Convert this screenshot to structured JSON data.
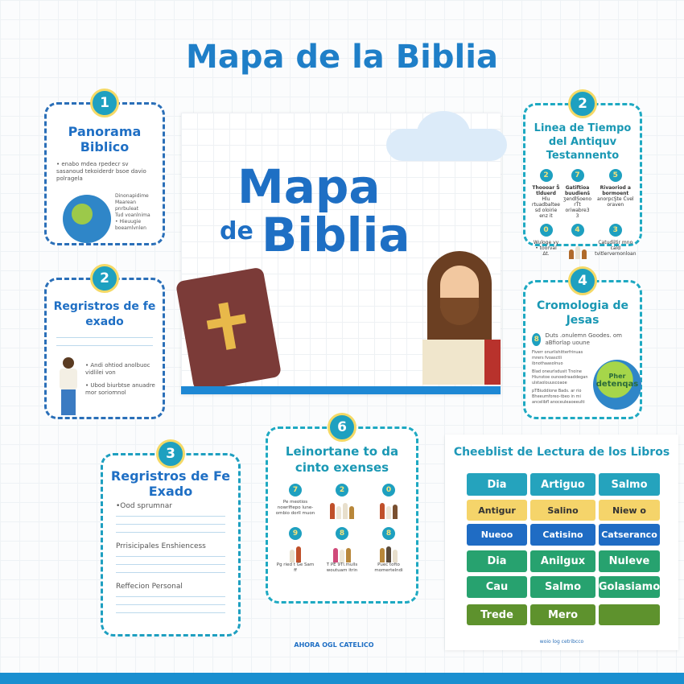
{
  "title": "Mapa de la Biblia",
  "poster": {
    "line1": "Mapa",
    "line2a": "de",
    "line2b": "Biblia"
  },
  "cards": {
    "panorama": {
      "badge": "1",
      "title": "Panorama Biblico",
      "text": "• enabo mdea rpedecr sv sasanoud tekoiderdr bsoe davio polragela",
      "side": [
        "Dinonapidime",
        "Maarean",
        "pnrbuleat",
        "Tud voanlnima",
        "• Hieuugie",
        "boeamlvnlen"
      ]
    },
    "timeline": {
      "badge": "2",
      "title": "Linea de Tiempo del Antiquv Testannento",
      "items": [
        {
          "n": "2",
          "label": "Thoooar Ŝ tlduerd",
          "sub": "Hlu rtuadbaltee sd oloirie enz it"
        },
        {
          "n": "7",
          "label": "Gatiftioa buudienŝ",
          "sub": "ʒendlSoeno rŤt oriwabre3 3"
        },
        {
          "n": "5",
          "label": "Rivaoriod a bormoent",
          "sub": "anorpcŞte Ćvel oraven"
        },
        {
          "n": "0",
          "label": "",
          "sub": "Wuloge vy • toorval Δt."
        },
        {
          "n": "4",
          "label": "",
          "sub": ""
        },
        {
          "n": "3",
          "label": "",
          "sub": "Catudiitir mno cald tvitlervernonloan"
        }
      ]
    },
    "registros_left": {
      "badge": "2",
      "title": "Regristros de fe exado",
      "bullets": [
        "• Andi ohtiod anolbuoc vidlilei von",
        "• Ubod biurbtse anuadre mor soriomnol"
      ]
    },
    "cronologia": {
      "badge": "4",
      "title": "Cromologia de Jesas",
      "n": "8",
      "lead": "Duts .onulemn Goodes. om aBfiorlap uoune",
      "paras": [
        "Fiverr onurlishitterfrinuas mrers fvoasctli ibnothaasolnuo",
        "Blad oneurlsdusit Tnoine Hiunstoe ounoedraaddegan ulstaolouuscoaoe",
        "pTBiuddiorw Bads. ar rio Bheeumforeo-tbeo in mi",
        "ancelibfl anoceuleaoeeulti"
      ],
      "globe_text": [
        "Pher",
        "detenqas"
      ]
    },
    "registros_3": {
      "badge": "3",
      "title": "Regristros de Fe Exado",
      "s1": "•Ood sprumnar",
      "s2": "Prrisicipales Enshiencess",
      "s3": "Reffecion Personal"
    },
    "leinortane": {
      "badge": "6",
      "title": "Leinortane to da cinto exenses",
      "items": [
        {
          "n": "7",
          "text": "Pe meotios nowrlfiepo lune-ombio dorll muon"
        },
        {
          "n": "2",
          "text": ""
        },
        {
          "n": "0",
          "text": ""
        },
        {
          "n": "9",
          "text": "Pg ried t Ge Sam ff"
        },
        {
          "n": "8",
          "text": "T PE 9Tl.mulls woutuam itrin"
        },
        {
          "n": "8",
          "text": "Puec tofto momertelndi"
        }
      ]
    }
  },
  "checklist": {
    "title": "Cheeblist de Lectura de los Libros",
    "footer": "woio log cetribcco",
    "rows": [
      [
        "Dia",
        "Artiguo",
        "Salmo"
      ],
      [
        "Antigur",
        "Salino",
        "Niew o"
      ],
      [
        "Nueoo",
        "Catisino",
        "Catseranco"
      ],
      [
        "Dia",
        "Anilgux",
        "Nuleve"
      ],
      [
        "Cau",
        "Salmo",
        "Golasiamo"
      ],
      [
        "Trede",
        "Mero",
        ""
      ]
    ],
    "row_colors": [
      "#25a3bd",
      "#f5d46a",
      "#1f6cc4",
      "#27a26f",
      "#27a26f",
      "#5e922d"
    ]
  },
  "footer": "AHORA OGL CATELICO",
  "colors": {
    "title": "#1f7fc8",
    "teal": "#1ea9c2",
    "blue": "#2a6fb8",
    "band": "#1a8fd0"
  }
}
